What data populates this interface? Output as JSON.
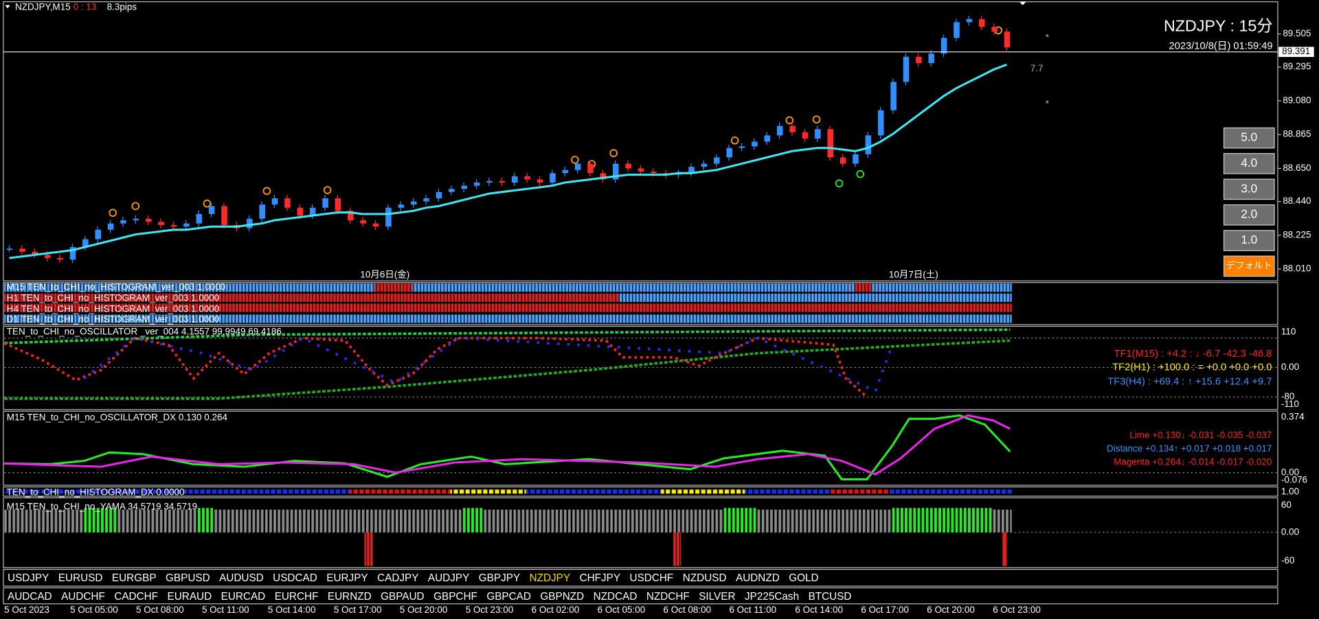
{
  "header": {
    "symbol": "NZDJPY,M15",
    "timer": "0 : 13",
    "spread": "8.3pips",
    "big_title": "NZDJPY : 15分",
    "datetime": "2023/10/8(日) 01:59:49",
    "note": "7.7"
  },
  "chart_data": {
    "type": "candlestick",
    "series": [
      {
        "name": "close",
        "up_color": "#2f8fff",
        "down_color": "#ff2a2a",
        "values": [
          88.14,
          88.12,
          88.1,
          88.08,
          88.07,
          88.15,
          88.2,
          88.26,
          88.3,
          88.32,
          88.33,
          88.31,
          88.29,
          88.28,
          88.3,
          88.36,
          88.41,
          88.29,
          88.27,
          88.33,
          88.42,
          88.46,
          88.4,
          88.35,
          88.4,
          88.46,
          88.38,
          88.32,
          88.3,
          88.28,
          88.4,
          88.42,
          88.44,
          88.46,
          88.5,
          88.52,
          88.54,
          88.56,
          88.57,
          88.56,
          88.6,
          88.58,
          88.56,
          88.62,
          88.64,
          88.68,
          88.62,
          88.58,
          88.68,
          88.65,
          88.63,
          88.62,
          88.61,
          88.62,
          88.66,
          88.68,
          88.72,
          88.78,
          88.79,
          88.82,
          88.86,
          88.92,
          88.88,
          88.84,
          88.9,
          88.72,
          88.68,
          88.74,
          88.86,
          89.02,
          89.2,
          89.36,
          89.32,
          89.38,
          89.48,
          89.58,
          89.6,
          89.55,
          89.52,
          89.42
        ]
      },
      {
        "name": "ma",
        "color": "#3ee6f5",
        "values": [
          88.08,
          88.09,
          88.1,
          88.11,
          88.12,
          88.13,
          88.15,
          88.17,
          88.19,
          88.21,
          88.23,
          88.24,
          88.25,
          88.26,
          88.26,
          88.27,
          88.28,
          88.28,
          88.28,
          88.29,
          88.3,
          88.32,
          88.33,
          88.34,
          88.35,
          88.36,
          88.37,
          88.37,
          88.36,
          88.36,
          88.36,
          88.37,
          88.38,
          88.4,
          88.41,
          88.43,
          88.45,
          88.47,
          88.49,
          88.5,
          88.51,
          88.52,
          88.53,
          88.54,
          88.56,
          88.57,
          88.58,
          88.59,
          88.6,
          88.61,
          88.61,
          88.61,
          88.61,
          88.62,
          88.62,
          88.63,
          88.64,
          88.66,
          88.68,
          88.7,
          88.72,
          88.74,
          88.76,
          88.77,
          88.78,
          88.78,
          88.77,
          88.76,
          88.78,
          88.82,
          88.87,
          88.93,
          88.99,
          89.05,
          89.11,
          89.16,
          89.2,
          89.24,
          89.28,
          89.31
        ]
      }
    ],
    "ylim": [
      87.94,
      89.71
    ],
    "yticks": [
      89.505,
      89.295,
      {
        "value": 89.08,
        "label": "89.080"
      },
      88.865,
      {
        "value": 88.65,
        "label": "88.650"
      },
      {
        "value": 88.44,
        "label": "88.440"
      },
      88.225,
      {
        "value": 88.01,
        "label": "88.010"
      }
    ],
    "current_price": 89.391,
    "date_labels": [
      "10月6日(金)",
      "10月7日(土)"
    ]
  },
  "buttons": [
    "5.0",
    "4.0",
    "3.0",
    "2.0",
    "1.0",
    "デフォルト"
  ],
  "histograms": [
    "M15 TEN_to_CHI_no_HISTOGRAM_ver_003 1.0000",
    "H1 TEN_to_CHI_no_HISTOGRAM_ver_003 1.0000",
    "H4 TEN_to_CHI_no_HISTOGRAM_ver_003 1.0000",
    "D1 TEN_to_CHI_no_HISTOGRAM_ver_003 1.0000"
  ],
  "oscillator": {
    "title": "TEN_to_CHI_no_OSCILLATOR _ver_004 4.1557 99.9949 69.4186",
    "scale": [
      "110",
      "0.00",
      "-80",
      "-110"
    ],
    "tf": [
      "TF1(M15) : +4.2 : ↓ -6.7 -42.3 -46.8",
      "TF2(H1) : +100.0 : = +0.0 +0.0 +0.0",
      "TF3(H4) : +69.4 : ↑ +15.6 +12.4 +9.7"
    ]
  },
  "dx": {
    "title": "M15 TEN_to_CHI_no_OSCILLATOR_DX 0.130 0.264",
    "scale": [
      "0.374",
      "0.00",
      "-0.076"
    ],
    "lines": [
      "Lime +0.130↓ -0.031 -0.035 -0.037",
      "Distance +0.134↑ +0.017 +0.018 +0.017",
      "Magenta +0.264↓ -0.014 -0.017 -0.020"
    ]
  },
  "hist_dx": {
    "title": "TEN_to_CHI_no_HISTOGRAM_DX 0.0000",
    "scale": "1.00"
  },
  "yama": {
    "title": "M15 TEN_to_CHI_no_YAMA 34.5719 34.5719",
    "scale": [
      "60",
      "0.00",
      "-60"
    ]
  },
  "symbols_row1": [
    "USDJPY",
    "EURUSD",
    "EURGBP",
    "GBPUSD",
    "AUDUSD",
    "USDCAD",
    "EURJPY",
    "CADJPY",
    "AUDJPY",
    "GBPJPY",
    "NZDJPY",
    "CHFJPY",
    "USDCHF",
    "NZDUSD",
    "AUDNZD",
    "GOLD"
  ],
  "symbols_row2": [
    "AUDCAD",
    "AUDCHF",
    "CADCHF",
    "EURAUD",
    "EURCAD",
    "EURCHF",
    "EURNZD",
    "GBPAUD",
    "GBPCHF",
    "GBPCAD",
    "GBPNZD",
    "NZDCAD",
    "NZDCHF",
    "SILVER",
    "JP225Cash",
    "BTCUSD"
  ],
  "time_axis": [
    "5 Oct 2023",
    "5 Oct 05:00",
    "5 Oct 08:00",
    "5 Oct 11:00",
    "5 Oct 14:00",
    "5 Oct 17:00",
    "5 Oct 20:00",
    "5 Oct 23:00",
    "6 Oct 02:00",
    "6 Oct 05:00",
    "6 Oct 08:00",
    "6 Oct 11:00",
    "6 Oct 14:00",
    "6 Oct 17:00",
    "6 Oct 20:00",
    "6 Oct 23:00"
  ]
}
